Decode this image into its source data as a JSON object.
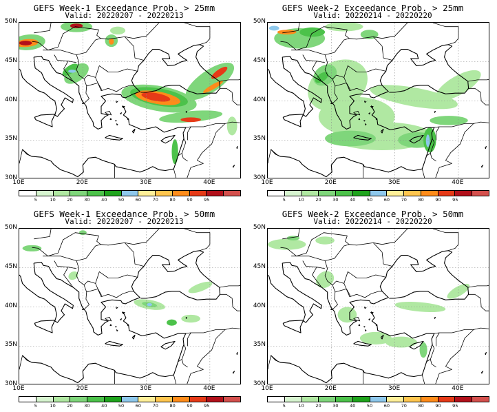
{
  "panels": [
    {
      "title": "GEFS Week-1 Exceedance Prob. > 25mm",
      "valid": "Valid: 20220207 - 20220213",
      "key": "w1_25"
    },
    {
      "title": "GEFS Week-2 Exceedance Prob. > 25mm",
      "valid": "Valid: 20220214 - 20220220",
      "key": "w2_25"
    },
    {
      "title": "GEFS Week-1 Exceedance Prob. > 50mm",
      "valid": "Valid: 20220207 - 20220213",
      "key": "w1_50"
    },
    {
      "title": "GEFS Week-2 Exceedance Prob. > 50mm",
      "valid": "Valid: 20220214 - 20220220",
      "key": "w2_50"
    }
  ],
  "axes": {
    "lat_labels": [
      "50N",
      "45N",
      "40N",
      "35N",
      "30N"
    ],
    "lon_labels": [
      "10E",
      "20E",
      "30E",
      "40E"
    ]
  },
  "colorbar": {
    "ticks": [
      "5",
      "10",
      "20",
      "30",
      "40",
      "50",
      "60",
      "70",
      "80",
      "90",
      "95"
    ],
    "colors": [
      "#ffffff",
      "#d7f5d0",
      "#b0e8a2",
      "#7fd67b",
      "#4cc24a",
      "#1fa41d",
      "#8ec8ec",
      "#fff099",
      "#ffc64f",
      "#ff8c1a",
      "#e63a17",
      "#b2101a",
      "#d4504d"
    ]
  }
}
